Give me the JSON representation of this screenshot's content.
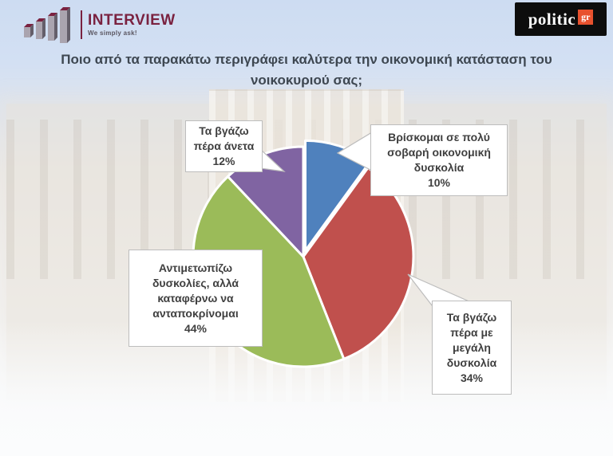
{
  "header": {
    "interview_logo": {
      "name": "INTERVIEW",
      "tagline": "We simply ask!",
      "brand_color": "#7a2240"
    },
    "politic_logo": {
      "name": "politic",
      "suffix": "gr",
      "accent_color": "#e8512e",
      "bg_color": "#0d0d0d"
    }
  },
  "question": "Ποιο από τα παρακάτω περιγράφει καλύτερα την οικονομική κατάσταση του νοικοκυριού σας;",
  "chart_data": {
    "type": "pie",
    "title": "Ποιο από τα παρακάτω περιγράφει καλύτερα την οικονομική κατάσταση του νοικοκυριού σας;",
    "unit": "%",
    "start_angle_deg": 0,
    "direction": "clockwise",
    "legend": "none",
    "labels_style": "callout-boxes",
    "slices": [
      {
        "id": "very-serious-difficulty",
        "label": "Βρίσκομαι σε πολύ σοβαρή οικονομική δυσκολία",
        "value": 10,
        "color": "#4f81bd",
        "exploded": true
      },
      {
        "id": "great-difficulty",
        "label": "Τα βγάζω πέρα με μεγάλη δυσκολία",
        "value": 34,
        "color": "#c0504d",
        "exploded": false
      },
      {
        "id": "coping-with-difficulties",
        "label": "Αντιμετωπίζω δυσκολίες, αλλά καταφέρνω να ανταποκρίνομαι",
        "value": 44,
        "color": "#9bbb59",
        "exploded": false
      },
      {
        "id": "comfortably",
        "label": "Τα βγάζω πέρα άνετα",
        "value": 12,
        "color": "#8064a2",
        "exploded": false
      }
    ]
  },
  "callouts": {
    "comfortably": {
      "text": "Τα βγάζω\nπέρα άνετα\n12%"
    },
    "very_serious": {
      "text": "Βρίσκομαι σε πολύ\nσοβαρή οικονομική\nδυσκολία\n10%"
    },
    "coping": {
      "text": "Αντιμετωπίζω\nδυσκολίες, αλλά\nκαταφέρνω να\nανταποκρίνομαι\n44%"
    },
    "great_difficulty": {
      "text": "Τα βγάζω\nπέρα με\nμεγάλη\nδυσκολία\n34%"
    }
  }
}
